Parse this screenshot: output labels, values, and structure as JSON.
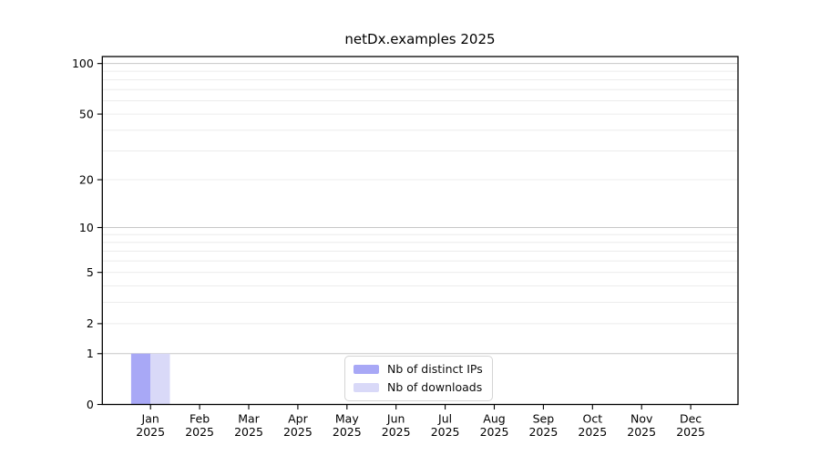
{
  "figure": {
    "background": "#ffffff",
    "axis_color": "#000000",
    "text_color": "#000000"
  },
  "chart_data": {
    "type": "bar",
    "title": "netDx.examples 2025",
    "categories": [
      "Jan 2025",
      "Feb 2025",
      "Mar 2025",
      "Apr 2025",
      "May 2025",
      "Jun 2025",
      "Jul 2025",
      "Aug 2025",
      "Sep 2025",
      "Oct 2025",
      "Nov 2025",
      "Dec 2025"
    ],
    "series": [
      {
        "name": "Nb of distinct IPs",
        "color": "#a8a8f6",
        "values": [
          1,
          0,
          0,
          0,
          0,
          0,
          0,
          0,
          0,
          0,
          0,
          0
        ]
      },
      {
        "name": "Nb of downloads",
        "color": "#d9d9f8",
        "values": [
          1,
          0,
          0,
          0,
          0,
          0,
          0,
          0,
          0,
          0,
          0,
          0
        ]
      }
    ],
    "xlabel": "",
    "ylabel": "",
    "yscale": "log1p",
    "ylim": [
      0,
      110
    ],
    "yticks": [
      0,
      1,
      2,
      5,
      10,
      20,
      50,
      100
    ],
    "grid": {
      "major_values": [
        1,
        10,
        100
      ],
      "minor_values": [
        2,
        3,
        4,
        5,
        6,
        7,
        8,
        9,
        20,
        30,
        40,
        50,
        60,
        70,
        80,
        90
      ],
      "major_color": "#c7c7c7",
      "minor_color": "#ececec"
    },
    "legend": {
      "position": "lower-center",
      "entries": [
        "Nb of distinct IPs",
        "Nb of downloads"
      ]
    }
  }
}
